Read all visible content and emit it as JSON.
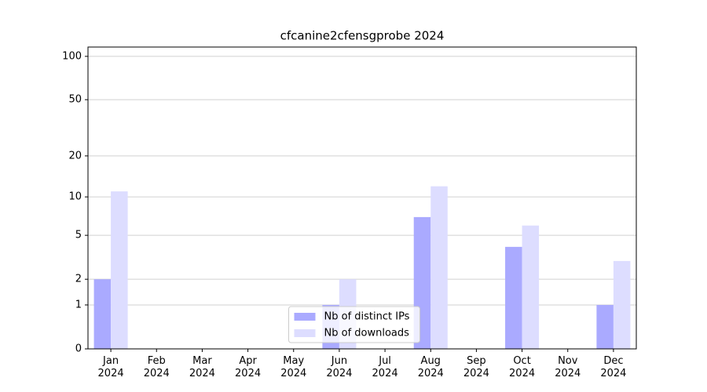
{
  "chart_data": {
    "type": "bar",
    "title": "cfcanine2cfensgprobe 2024",
    "categories": [
      "Jan 2024",
      "Feb 2024",
      "Mar 2024",
      "Apr 2024",
      "May 2024",
      "Jun 2024",
      "Jul 2024",
      "Aug 2024",
      "Sep 2024",
      "Oct 2024",
      "Nov 2024",
      "Dec 2024"
    ],
    "series": [
      {
        "name": "Nb of distinct IPs",
        "color": "#aaaaff",
        "values": [
          2,
          0,
          0,
          0,
          0,
          1,
          0,
          7,
          0,
          4,
          0,
          1
        ]
      },
      {
        "name": "Nb of downloads",
        "color": "#ddddff",
        "values": [
          11,
          0,
          0,
          0,
          0,
          2,
          0,
          12,
          0,
          6,
          0,
          3
        ]
      }
    ],
    "yscale": "log1p",
    "ylim": [
      0,
      116
    ],
    "yticks": [
      0,
      1,
      2,
      5,
      10,
      20,
      50,
      100
    ],
    "grid": true,
    "legend": "lower center"
  }
}
